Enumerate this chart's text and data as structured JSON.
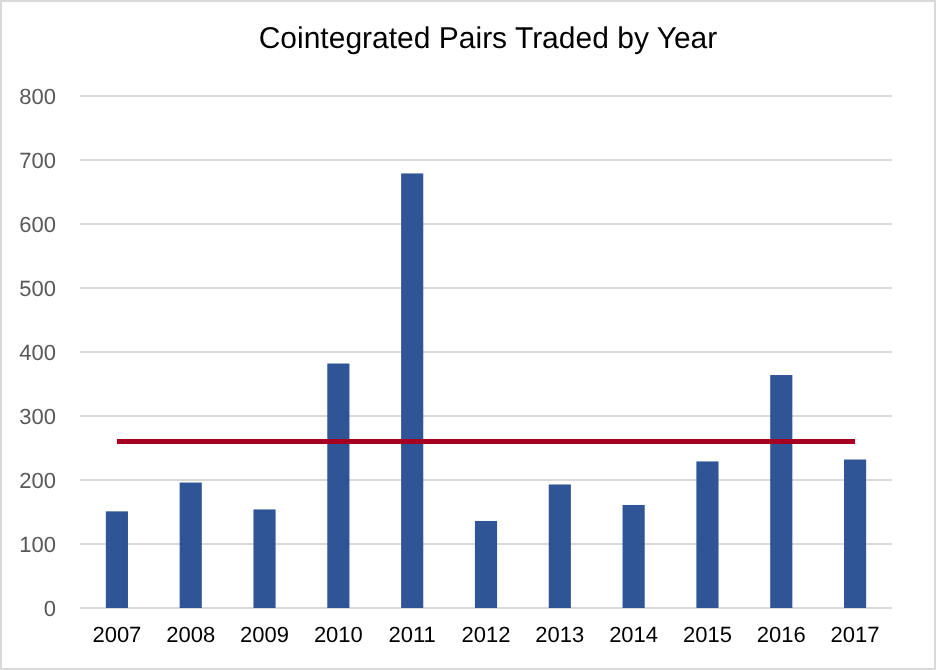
{
  "chart_data": {
    "type": "bar",
    "title": "Cointegrated Pairs Traded by Year",
    "categories": [
      "2007",
      "2008",
      "2009",
      "2010",
      "2011",
      "2012",
      "2013",
      "2014",
      "2015",
      "2016",
      "2017"
    ],
    "series": [
      {
        "color": "#2f5597",
        "values": [
          151,
          196,
          154,
          382,
          679,
          136,
          193,
          161,
          229,
          364,
          232
        ]
      },
      {
        "type": "line",
        "color": "#a50021",
        "values": [
          260,
          260,
          260,
          260,
          260,
          260,
          260,
          260,
          260,
          260,
          260
        ]
      }
    ],
    "ylim": [
      0,
      800
    ],
    "yticks": [
      0,
      100,
      200,
      300,
      400,
      500,
      600,
      700,
      800
    ],
    "grid": "y"
  }
}
